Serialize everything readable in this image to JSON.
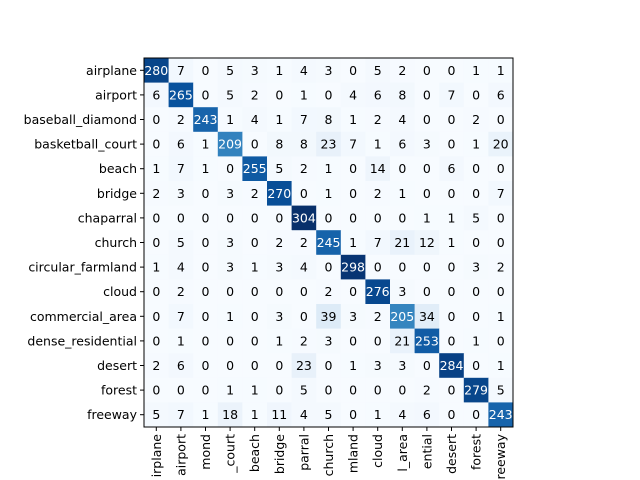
{
  "chart_data": {
    "type": "heatmap",
    "title": "",
    "xlabel": "",
    "ylabel": "",
    "colormap": "Blues",
    "value_range": [
      0,
      304
    ],
    "row_labels": [
      "airplane",
      "airport",
      "baseball_diamond",
      "basketball_court",
      "beach",
      "bridge",
      "chaparral",
      "church",
      "circular_farmland",
      "cloud",
      "commercial_area",
      "dense_residential",
      "desert",
      "forest",
      "freeway"
    ],
    "col_labels": [
      "irplane",
      "airport",
      "mond",
      "_court",
      "beach",
      "bridge",
      "parral",
      "church",
      "mland",
      "cloud",
      "l_area",
      "ential",
      "desert",
      "forest",
      "reeway"
    ],
    "matrix": [
      [
        280,
        7,
        0,
        5,
        3,
        1,
        4,
        3,
        0,
        5,
        2,
        0,
        0,
        1,
        1
      ],
      [
        6,
        265,
        0,
        5,
        2,
        0,
        1,
        0,
        4,
        6,
        8,
        0,
        7,
        0,
        6
      ],
      [
        0,
        2,
        243,
        1,
        4,
        1,
        7,
        8,
        1,
        2,
        4,
        0,
        0,
        2,
        0
      ],
      [
        0,
        6,
        1,
        209,
        0,
        8,
        8,
        23,
        7,
        1,
        6,
        3,
        0,
        1,
        20
      ],
      [
        1,
        7,
        1,
        0,
        255,
        5,
        2,
        1,
        0,
        14,
        0,
        0,
        6,
        0,
        0
      ],
      [
        2,
        3,
        0,
        3,
        2,
        270,
        0,
        1,
        0,
        2,
        1,
        0,
        0,
        0,
        7
      ],
      [
        0,
        0,
        0,
        0,
        0,
        0,
        304,
        0,
        0,
        0,
        0,
        1,
        1,
        5,
        0
      ],
      [
        0,
        5,
        0,
        3,
        0,
        2,
        2,
        245,
        1,
        7,
        21,
        12,
        1,
        0,
        0
      ],
      [
        1,
        4,
        0,
        3,
        1,
        3,
        4,
        0,
        298,
        0,
        0,
        0,
        0,
        3,
        2
      ],
      [
        0,
        2,
        0,
        0,
        0,
        0,
        0,
        2,
        0,
        276,
        3,
        0,
        0,
        0,
        0
      ],
      [
        0,
        7,
        0,
        1,
        0,
        3,
        0,
        39,
        3,
        2,
        205,
        34,
        0,
        0,
        1
      ],
      [
        0,
        1,
        0,
        0,
        0,
        1,
        2,
        3,
        0,
        0,
        21,
        253,
        0,
        1,
        0
      ],
      [
        2,
        6,
        0,
        0,
        0,
        0,
        23,
        0,
        1,
        3,
        3,
        0,
        284,
        0,
        1
      ],
      [
        0,
        0,
        0,
        1,
        1,
        0,
        5,
        0,
        0,
        0,
        0,
        2,
        0,
        279,
        5
      ],
      [
        5,
        7,
        1,
        18,
        1,
        11,
        4,
        5,
        0,
        1,
        4,
        6,
        0,
        0,
        243
      ]
    ]
  }
}
